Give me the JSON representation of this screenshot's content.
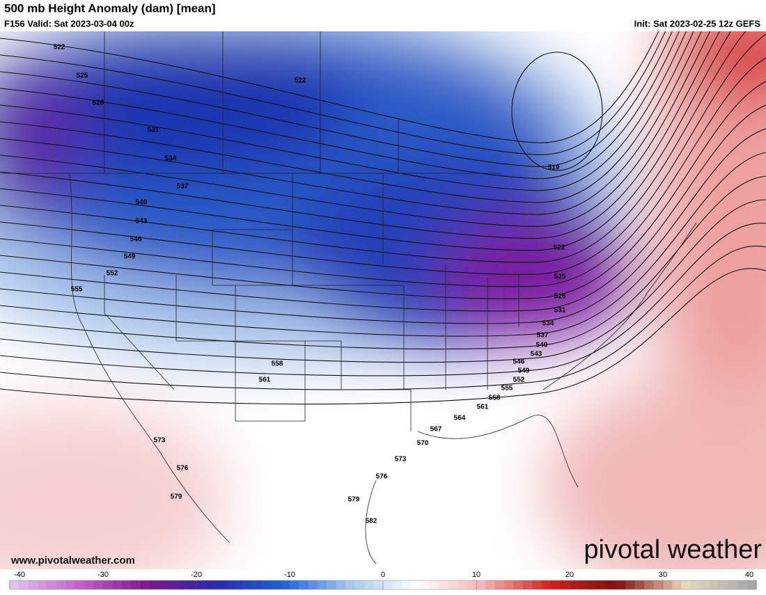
{
  "header": {
    "title": "500 mb Height Anomaly (dam) [mean]",
    "valid": "F156 Valid: Sat 2023-03-04 00z",
    "init": "Init: Sat 2023-02-25 12z GEFS"
  },
  "map": {
    "contour_labels": [
      522,
      525,
      528,
      531,
      534,
      537,
      540,
      543,
      546,
      549,
      552,
      555,
      558,
      561,
      564,
      567,
      570,
      573,
      576,
      579,
      582,
      519,
      522,
      522,
      525,
      528,
      531,
      534,
      537,
      540,
      543,
      546,
      549,
      552,
      555,
      558,
      561,
      573,
      576,
      579
    ],
    "website": "www.pivotalweather.com",
    "logo": "pivotal weather"
  },
  "colorbar": {
    "lim": [
      -40,
      40
    ],
    "ticks": [
      -40,
      -30,
      -20,
      -10,
      0,
      10,
      20,
      30,
      40
    ],
    "colors": [
      "#e0c0ec",
      "#c060c8",
      "#7a1a8a",
      "#2a2aa8",
      "#2060d8",
      "#a8c8ec",
      "#ffffff",
      "#f4b4b4",
      "#d02020",
      "#801010",
      "#e8d8c0",
      "#a8a8a8"
    ]
  }
}
